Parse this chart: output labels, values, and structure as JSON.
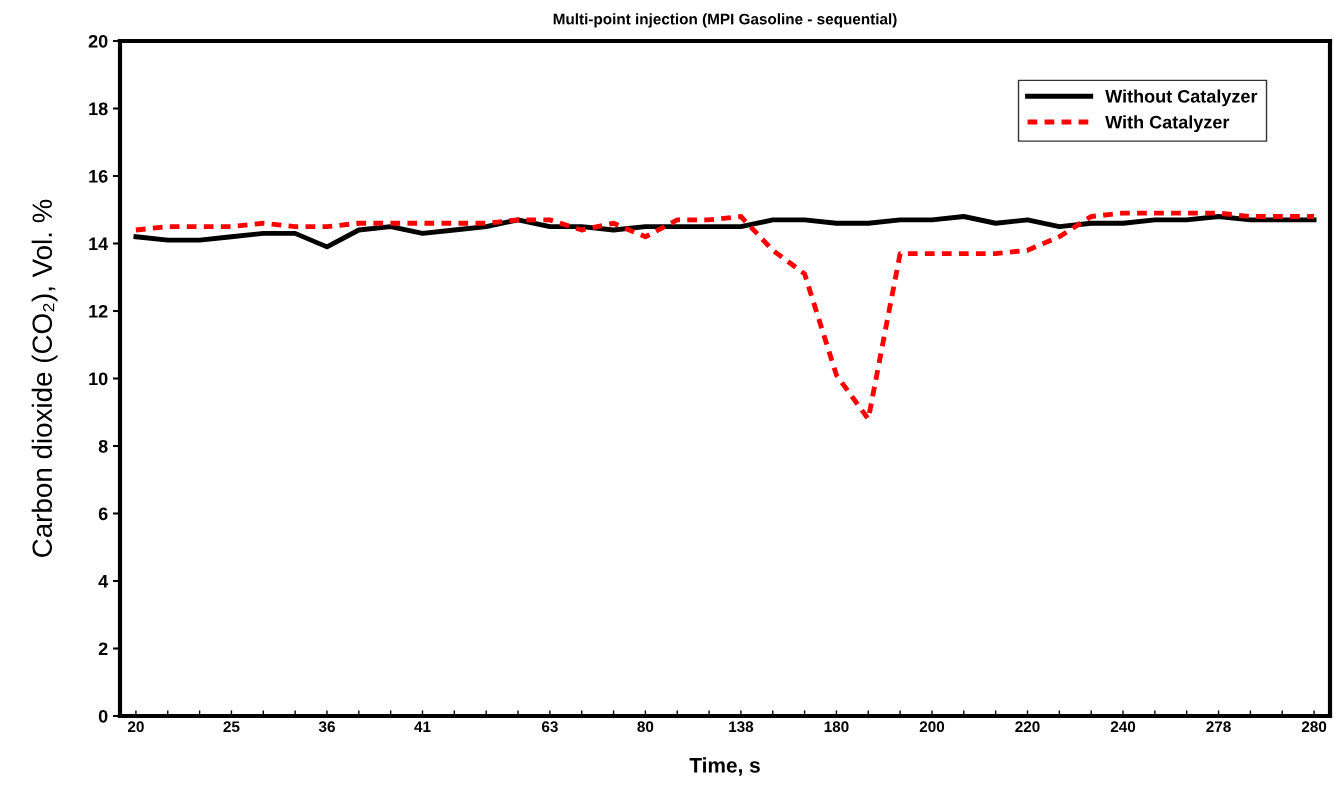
{
  "chart_data": {
    "type": "line",
    "title": "Multi-point injection (MPI Gasoline - sequential)",
    "xlabel": "Time, s",
    "ylabel": "Carbon dioxide (CO₂), Vol. %",
    "categories": [
      "20",
      null,
      null,
      "25",
      null,
      null,
      "36",
      null,
      null,
      "41",
      null,
      null,
      null,
      "63",
      null,
      null,
      "80",
      null,
      null,
      "138",
      null,
      null,
      "180",
      null,
      null,
      "200",
      null,
      null,
      "220",
      null,
      null,
      "240",
      null,
      null,
      "278",
      null,
      null,
      "280"
    ],
    "series": [
      {
        "name": "Without Catalyzer",
        "color": "#000000",
        "line_style": "solid",
        "values": [
          14.2,
          14.1,
          14.1,
          14.2,
          14.3,
          14.3,
          13.9,
          14.4,
          14.5,
          14.3,
          14.4,
          14.5,
          14.7,
          14.5,
          14.5,
          14.4,
          14.5,
          14.5,
          14.5,
          14.5,
          14.7,
          14.7,
          14.6,
          14.6,
          14.7,
          14.7,
          14.8,
          14.6,
          14.7,
          14.5,
          14.6,
          14.6,
          14.7,
          14.7,
          14.8,
          14.7,
          14.7,
          14.7
        ]
      },
      {
        "name": "With Catalyzer",
        "color": "#ff0000",
        "line_style": "dashed",
        "values": [
          14.4,
          14.5,
          14.5,
          14.5,
          14.6,
          14.5,
          14.5,
          14.6,
          14.6,
          14.6,
          14.6,
          14.6,
          14.7,
          14.7,
          14.4,
          14.6,
          14.2,
          14.7,
          14.7,
          14.8,
          13.8,
          13.1,
          10.1,
          8.8,
          13.7,
          13.7,
          13.7,
          13.7,
          13.8,
          14.2,
          14.8,
          14.9,
          14.9,
          14.9,
          14.9,
          14.8,
          14.8,
          14.8
        ]
      }
    ],
    "ylim": [
      0,
      20
    ],
    "yticks": [
      0,
      2,
      4,
      6,
      8,
      10,
      12,
      14,
      16,
      18,
      20
    ],
    "grid": false,
    "legend": "top right",
    "marker": "none"
  }
}
